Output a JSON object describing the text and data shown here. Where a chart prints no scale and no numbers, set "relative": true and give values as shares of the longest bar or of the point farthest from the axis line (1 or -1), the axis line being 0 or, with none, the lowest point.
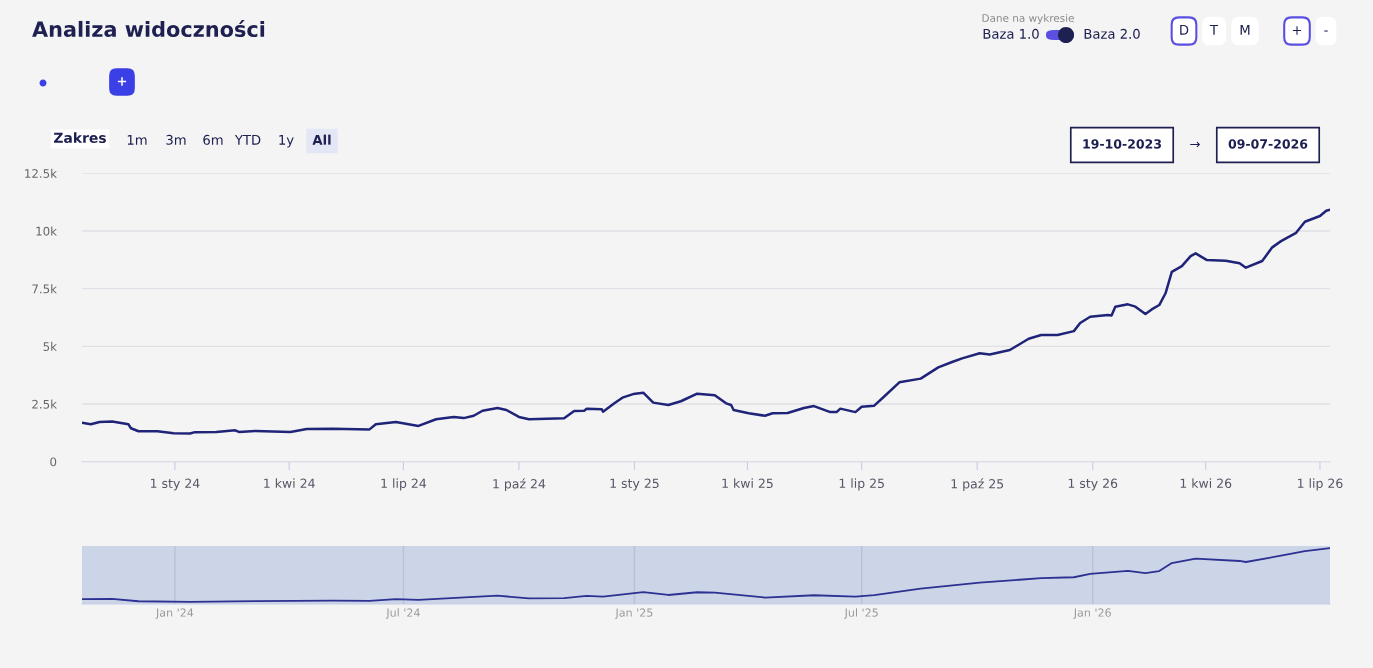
{
  "chart_data": [
    {
      "type": "line",
      "title": "Analiza widoczności",
      "annotations": [
        "Dane na wykresie",
        "Baza 1.0",
        "Baza 2.0",
        "D",
        "T",
        "M",
        "+",
        "-",
        "+",
        "Zakres",
        "1m",
        "3m",
        "6m",
        "YTD",
        "1y",
        "All",
        "19-10-2023",
        "→",
        "09-07-2026"
      ],
      "x": [
        "2023-10-19",
        "2023-10-26",
        "2023-11-02",
        "2023-11-12",
        "2023-11-25",
        "2023-11-27",
        "2023-12-03",
        "2023-12-18",
        "2023-12-31",
        "2024-01-13",
        "2024-01-17",
        "2024-02-03",
        "2024-02-18",
        "2024-02-21",
        "2024-03-05",
        "2024-04-02",
        "2024-04-15",
        "2024-05-06",
        "2024-06-04",
        "2024-06-09",
        "2024-06-25",
        "2024-07-13",
        "2024-07-27",
        "2024-08-10",
        "2024-08-18",
        "2024-08-26",
        "2024-09-02",
        "2024-09-14",
        "2024-09-21",
        "2024-10-01",
        "2024-10-09",
        "2024-11-06",
        "2024-11-14",
        "2024-11-22",
        "2024-11-24",
        "2024-12-06",
        "2024-12-07",
        "2024-12-16",
        "2024-12-23",
        "2024-12-31",
        "2025-01-08",
        "2025-01-16",
        "2025-01-28",
        "2025-02-07",
        "2025-02-20",
        "2025-03-06",
        "2025-03-15",
        "2025-03-19",
        "2025-03-21",
        "2025-04-02",
        "2025-04-15",
        "2025-04-21",
        "2025-05-03",
        "2025-05-16",
        "2025-05-24",
        "2025-06-06",
        "2025-06-11",
        "2025-06-14",
        "2025-06-26",
        "2025-07-01",
        "2025-07-11",
        "2025-07-20",
        "2025-07-31",
        "2025-08-17",
        "2025-08-31",
        "2025-09-11",
        "2025-09-19",
        "2025-10-03",
        "2025-10-11",
        "2025-10-27",
        "2025-11-11",
        "2025-11-21",
        "2025-12-04",
        "2025-12-17",
        "2025-12-22",
        "2025-12-30",
        "2026-01-13",
        "2026-01-16",
        "2026-01-19",
        "2026-01-29",
        "2026-02-04",
        "2026-02-12",
        "2026-02-17",
        "2026-02-23",
        "2026-02-28",
        "2026-03-05",
        "2026-03-13",
        "2026-03-20",
        "2026-03-24",
        "2026-04-02",
        "2026-04-17",
        "2026-04-28",
        "2026-05-03",
        "2026-05-16",
        "2026-05-24",
        "2026-05-31",
        "2026-06-12",
        "2026-06-19",
        "2026-07-01",
        "2026-07-06",
        "2026-07-09"
      ],
      "series": [
        {
          "color": "#1f2478",
          "values": [
            1690,
            1620,
            1720,
            1740,
            1620,
            1450,
            1320,
            1320,
            1230,
            1220,
            1280,
            1290,
            1360,
            1290,
            1330,
            1290,
            1420,
            1430,
            1400,
            1620,
            1720,
            1550,
            1840,
            1940,
            1890,
            1990,
            2210,
            2330,
            2240,
            1940,
            1840,
            1880,
            2200,
            2210,
            2300,
            2270,
            2170,
            2530,
            2790,
            2930,
            2990,
            2560,
            2460,
            2620,
            2950,
            2880,
            2530,
            2460,
            2240,
            2100,
            1990,
            2100,
            2110,
            2330,
            2410,
            2150,
            2150,
            2300,
            2150,
            2380,
            2430,
            2880,
            3440,
            3600,
            4090,
            4320,
            4480,
            4700,
            4650,
            4840,
            5330,
            5490,
            5490,
            5660,
            6010,
            6280,
            6360,
            6340,
            6720,
            6820,
            6720,
            6400,
            6600,
            6790,
            7300,
            8230,
            8480,
            8910,
            9030,
            8740,
            8710,
            8600,
            8410,
            8700,
            9290,
            9560,
            9920,
            10400,
            10650,
            10880,
            10920
          ]
        }
      ],
      "xlim": [
        "2023-10-19",
        "2026-07-09"
      ],
      "xticks": [
        {
          "value": "2024-01-01",
          "label": "1 sty 24"
        },
        {
          "value": "2024-04-01",
          "label": "1 kwi 24"
        },
        {
          "value": "2024-07-01",
          "label": "1 lip 24"
        },
        {
          "value": "2024-10-01",
          "label": "1 paź 24"
        },
        {
          "value": "2025-01-01",
          "label": "1 sty 25"
        },
        {
          "value": "2025-04-01",
          "label": "1 kwi 25"
        },
        {
          "value": "2025-07-01",
          "label": "1 lip 25"
        },
        {
          "value": "2025-10-01",
          "label": "1 paź 25"
        },
        {
          "value": "2026-01-01",
          "label": "1 sty 26"
        },
        {
          "value": "2026-04-01",
          "label": "1 kwi 26"
        },
        {
          "value": "2026-07-01",
          "label": "1 lip 26"
        }
      ],
      "ylim": [
        0,
        12500
      ],
      "yticks": [
        0,
        {
          "value": 2500,
          "label": "2.5k"
        },
        {
          "value": 5000,
          "label": "5k"
        },
        {
          "value": 7500,
          "label": "7.5k"
        },
        {
          "value": 10000,
          "label": "10k"
        },
        {
          "value": 12500,
          "label": "12.5k"
        }
      ],
      "grid": "y",
      "marker": "none",
      "line_style": "solid"
    },
    {
      "type": "line",
      "relative": true,
      "x": [
        "2023-10-19",
        "2023-11-12",
        "2023-12-03",
        "2024-01-13",
        "2024-03-05",
        "2024-05-06",
        "2024-06-04",
        "2024-06-25",
        "2024-07-13",
        "2024-09-14",
        "2024-10-09",
        "2024-11-06",
        "2024-11-24",
        "2024-12-07",
        "2025-01-08",
        "2025-01-28",
        "2025-02-20",
        "2025-03-06",
        "2025-04-15",
        "2025-05-24",
        "2025-06-26",
        "2025-07-11",
        "2025-08-17",
        "2025-10-03",
        "2025-11-21",
        "2025-12-17",
        "2025-12-30",
        "2026-01-29",
        "2026-02-12",
        "2026-02-23",
        "2026-03-05",
        "2026-03-24",
        "2026-04-28",
        "2026-05-03",
        "2026-05-31",
        "2026-06-19",
        "2026-07-09"
      ],
      "series": [
        {
          "color": "#2c3192",
          "values": [
            0.049,
            0.054,
            0.011,
            0,
            0.012,
            0.022,
            0.019,
            0.052,
            0.035,
            0.115,
            0.064,
            0.069,
            0.112,
            0.098,
            0.183,
            0.128,
            0.179,
            0.172,
            0.08,
            0.123,
            0.096,
            0.125,
            0.246,
            0.359,
            0.44,
            0.458,
            0.522,
            0.578,
            0.534,
            0.574,
            0.723,
            0.805,
            0.761,
            0.742,
            0.86,
            0.946,
            1
          ]
        }
      ],
      "xlim": [
        "2023-10-19",
        "2026-07-09"
      ],
      "xticks": [
        {
          "value": "2024-01-01",
          "label": "Jan '24"
        },
        {
          "value": "2024-07-01",
          "label": "Jul '24"
        },
        {
          "value": "2025-01-01",
          "label": "Jan '25"
        },
        {
          "value": "2025-07-01",
          "label": "Jul '25"
        },
        {
          "value": "2026-01-01",
          "label": "Jan '26"
        }
      ],
      "bands": [
        {
          "axis": "x",
          "from": "2023-10-19",
          "to": "2026-07-09",
          "color": "#c8d0e6"
        }
      ],
      "grid": "x",
      "marker": "none",
      "line_style": "solid"
    }
  ]
}
